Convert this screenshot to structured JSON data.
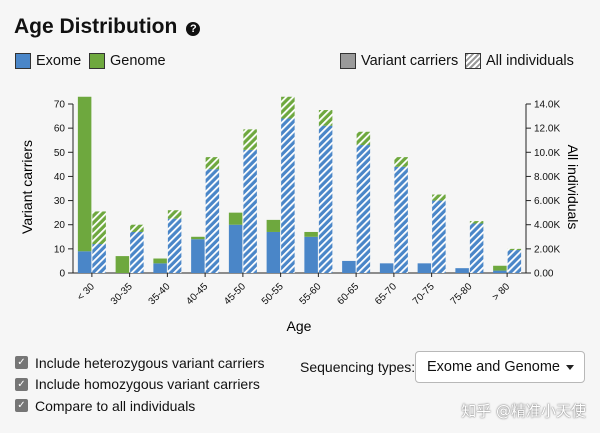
{
  "header": {
    "title": "Age Distribution",
    "help_glyph": "?"
  },
  "legend": {
    "exome": "Exome",
    "genome": "Genome",
    "variant_carriers": "Variant carriers",
    "all_individuals": "All individuals"
  },
  "colors": {
    "exome": "#4a86c8",
    "genome": "#6ea83e",
    "grey": "#9a9a9a"
  },
  "chart_data": {
    "type": "bar",
    "title": "Age Distribution",
    "xlabel": "Age",
    "ylabel_left": "Variant carriers",
    "ylabel_right": "All individuals",
    "ylim_left": [
      0,
      70
    ],
    "ylim_right": [
      0,
      14000
    ],
    "left_ticks": [
      "0",
      "10",
      "20",
      "30",
      "40",
      "50",
      "60",
      "70"
    ],
    "right_ticks": [
      "0.00",
      "2.00K",
      "4.00K",
      "6.00K",
      "8.00K",
      "10.0K",
      "12.0K",
      "14.0K"
    ],
    "categories": [
      "< 30",
      "30-35",
      "35-40",
      "40-45",
      "45-50",
      "50-55",
      "55-60",
      "60-65",
      "65-70",
      "70-75",
      "75-80",
      "> 80"
    ],
    "series": [
      {
        "name": "Variant carriers - Exome",
        "axis": "left",
        "values": [
          9,
          0,
          4,
          14,
          20,
          17,
          15,
          5,
          4,
          4,
          2,
          1
        ]
      },
      {
        "name": "Variant carriers - Genome",
        "axis": "left",
        "values": [
          64,
          7,
          2,
          1,
          5,
          5,
          2,
          0,
          0,
          0,
          0,
          2
        ]
      },
      {
        "name": "All individuals - Exome",
        "axis": "right",
        "values": [
          2400,
          3400,
          4500,
          8600,
          10200,
          12800,
          12200,
          10600,
          8800,
          6000,
          4100,
          1900
        ]
      },
      {
        "name": "All individuals - Genome",
        "axis": "right",
        "values": [
          2700,
          600,
          700,
          1000,
          1700,
          1800,
          1300,
          1100,
          800,
          500,
          200,
          100
        ]
      }
    ]
  },
  "controls": {
    "include_het": "Include heterozygous variant carriers",
    "include_hom": "Include homozygous variant carriers",
    "compare_all": "Compare to all individuals",
    "check_glyph": "✓",
    "sequencing_label": "Sequencing types:",
    "sequencing_value": "Exome and Genome"
  },
  "watermark": "知乎 @精准小天使"
}
